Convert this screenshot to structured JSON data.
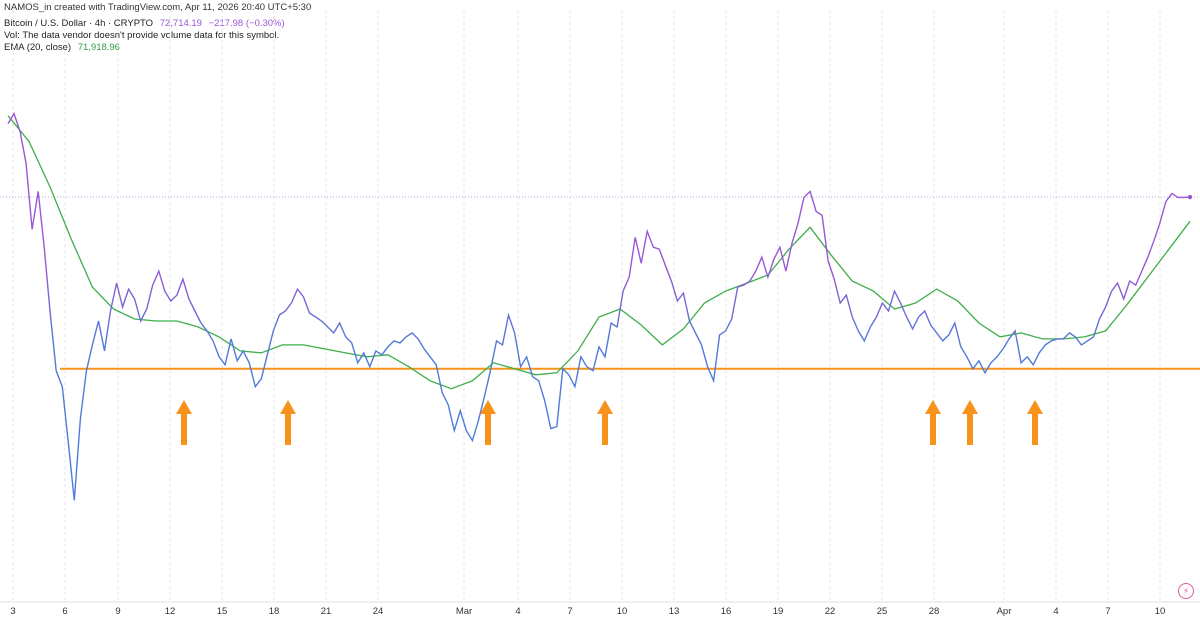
{
  "header": {
    "attribution": "NAMOS_in created with TradingView.com, Apr 11, 2026 20:40 UTC+5:30",
    "symbol_line": "Bitcoin / U.S. Dollar · 4h · CRYPTO",
    "price": "72,714.19",
    "change": "−217.98 (−0.30%)",
    "volume_note": "Vol: The data vendor doesn't provide volume data for this symbol.",
    "ema_label": "EMA (20, close)",
    "ema_value": "71,918.96"
  },
  "colors": {
    "price_line": "#7b6fd6",
    "price_above": "#9a57d6",
    "price_below": "#4f7bd8",
    "ema": "#3fae4a",
    "support": "#f7931a",
    "arrow": "#f7931a",
    "gridline": "#e6e6e6"
  },
  "chart_data": {
    "type": "line",
    "x_ticks": [
      "3",
      "6",
      "9",
      "12",
      "15",
      "18",
      "21",
      "24",
      "Mar",
      "4",
      "7",
      "10",
      "13",
      "16",
      "19",
      "22",
      "25",
      "28",
      "Apr",
      "4",
      "7",
      "10"
    ],
    "price_series_approx": [
      76400,
      76900,
      76000,
      74400,
      71100,
      73000,
      70200,
      66900,
      64000,
      63200,
      60400,
      57500,
      61600,
      64000,
      65300,
      66500,
      65000,
      67000,
      68400,
      67200,
      68100,
      67600,
      66500,
      67100,
      68300,
      69000,
      68000,
      67500,
      67800,
      68600,
      67600,
      67000,
      66400,
      66000,
      65500,
      64700,
      64300,
      65600,
      64500,
      65000,
      64400,
      63200,
      63600,
      64800,
      66000,
      66800,
      67000,
      67400,
      68100,
      67700,
      66900,
      66700,
      66500,
      66200,
      65900,
      66400,
      65700,
      65400,
      64400,
      64900,
      64200,
      65000,
      64800,
      65200,
      65500,
      65400,
      65700,
      65900,
      65600,
      65100,
      64700,
      64300,
      62900,
      62300,
      61000,
      62000,
      61000,
      60500,
      61500,
      62700,
      64000,
      65500,
      65300,
      66800,
      65900,
      64200,
      64700,
      63700,
      63500,
      62500,
      61100,
      61200,
      64100,
      63800,
      63200,
      64700,
      64200,
      64000,
      65200,
      64700,
      66400,
      66200,
      68000,
      68700,
      70700,
      69400,
      71000,
      70200,
      70100,
      69300,
      68500,
      67500,
      67900,
      66500,
      65900,
      65300,
      64200,
      63500,
      65800,
      66000,
      66600,
      68200,
      68300,
      68500,
      69000,
      69700,
      68700,
      69600,
      70200,
      69000,
      70400,
      71400,
      72700,
      73000,
      72000,
      71800,
      69500,
      68600,
      67400,
      67800,
      66700,
      66000,
      65500,
      66200,
      66700,
      67400,
      67000,
      68000,
      67400,
      66700,
      66100,
      66700,
      67000,
      66300,
      65900,
      65500,
      65800,
      66400,
      65200,
      64700,
      64100,
      64500,
      63900,
      64400,
      64700,
      65100,
      65600,
      66000,
      64400,
      64700,
      64300,
      64900,
      65300,
      65500,
      65600,
      65600,
      65900,
      65700,
      65300,
      65500,
      65700,
      66600,
      67200,
      68000,
      68400,
      67600,
      68500,
      68300,
      69000,
      69700,
      70500,
      71400,
      72500,
      72900,
      72700,
      72700,
      72714
    ],
    "ema_series_approx": [
      76800,
      75500,
      73200,
      70600,
      68200,
      67100,
      66600,
      66500,
      66500,
      66200,
      65700,
      65000,
      64900,
      65300,
      65300,
      65100,
      64900,
      64700,
      64800,
      64200,
      63500,
      63100,
      63500,
      64400,
      64100,
      63800,
      63900,
      65000,
      66700,
      67100,
      66300,
      65300,
      66100,
      67400,
      68000,
      68400,
      68800,
      70100,
      71200,
      69800,
      68500,
      68000,
      67100,
      67400,
      68100,
      67500,
      66400,
      65700,
      65900,
      65600,
      65600,
      65700,
      66000,
      67300,
      68700,
      70100,
      71500
    ],
    "support_level": "≈64,100",
    "support_touch_arrows": 7,
    "last_price": "72,714.19",
    "legend": "none"
  },
  "arrows": [
    184,
    288,
    488,
    605,
    933,
    970,
    1035
  ]
}
